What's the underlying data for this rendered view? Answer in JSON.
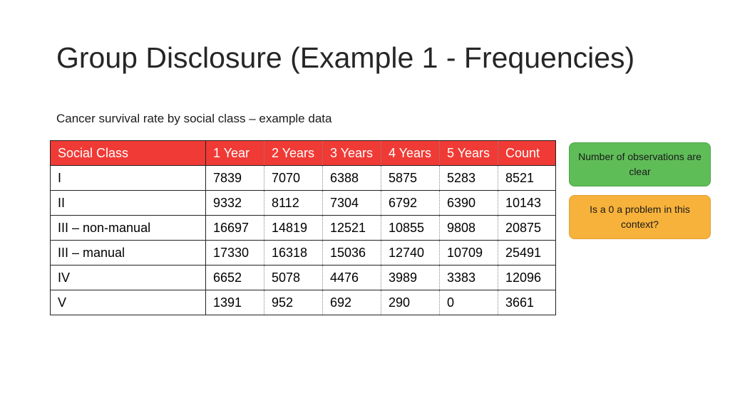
{
  "title": "Group Disclosure (Example 1 - Frequencies)",
  "subtitle": "Cancer survival rate by social class – example data",
  "table": {
    "headers": [
      "Social Class",
      "1 Year",
      "2 Years",
      "3 Years",
      "4 Years",
      "5 Years",
      "Count"
    ],
    "rows": [
      [
        "I",
        "7839",
        "7070",
        "6388",
        "5875",
        "5283",
        "8521"
      ],
      [
        "II",
        "9332",
        "8112",
        "7304",
        "6792",
        "6390",
        "10143"
      ],
      [
        "III – non-manual",
        "16697",
        "14819",
        "12521",
        "10855",
        "9808",
        "20875"
      ],
      [
        "III – manual",
        "17330",
        "16318",
        "15036",
        "12740",
        "10709",
        "25491"
      ],
      [
        "IV",
        "6652",
        "5078",
        "4476",
        "3989",
        "3383",
        "12096"
      ],
      [
        "V",
        "1391",
        "952",
        "692",
        "290",
        "0",
        "3661"
      ]
    ]
  },
  "callouts": {
    "observations": "Number of observations are clear",
    "zero_problem": "Is a 0 a problem in this context?"
  },
  "colors": {
    "header_background": "#f03a35",
    "callout_green": "#5fbd58",
    "callout_orange": "#f7b23b"
  }
}
